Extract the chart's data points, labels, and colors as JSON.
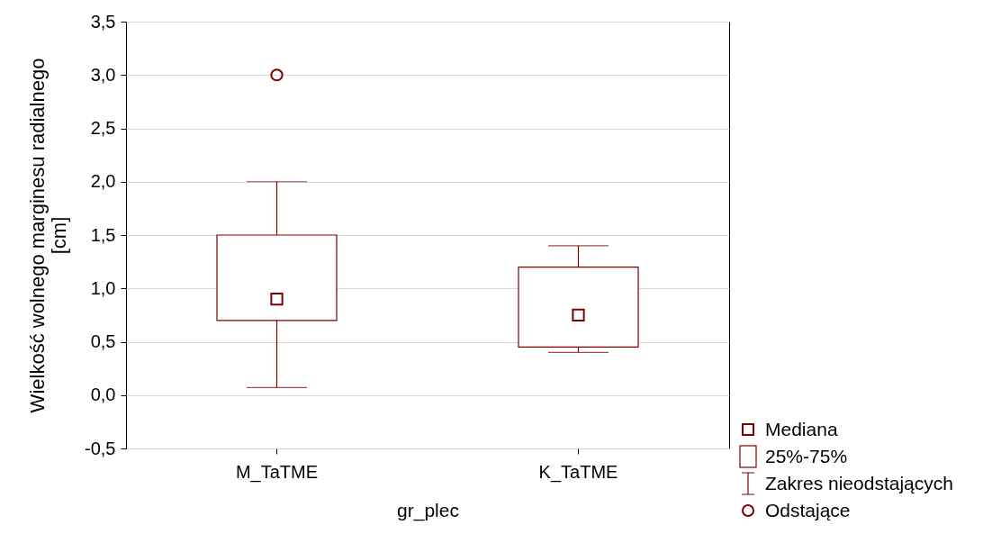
{
  "chart_data": {
    "type": "box",
    "xlabel": "gr_plec",
    "ylabel": "Wielkość wolnego marginesu radialnego\n[cm]",
    "categories": [
      "M_TaTME",
      "K_TaTME"
    ],
    "series": [
      {
        "color": "#800000",
        "boxes": [
          {
            "low": 0.07,
            "q1": 0.7,
            "median": 0.9,
            "q3": 1.5,
            "high": 2.0,
            "outliers": [
              3.0
            ]
          },
          {
            "low": 0.4,
            "q1": 0.45,
            "median": 0.75,
            "q3": 1.2,
            "high": 1.4
          }
        ]
      }
    ],
    "ylim": [
      -0.5,
      3.5
    ],
    "yticks": [
      {
        "value": -0.5,
        "label": "-0,5"
      },
      {
        "value": 0,
        "label": "0,0"
      },
      {
        "value": 0.5,
        "label": "0,5"
      },
      {
        "value": 1,
        "label": "1,0"
      },
      {
        "value": 1.5,
        "label": "1,5"
      },
      {
        "value": 2,
        "label": "2,0"
      },
      {
        "value": 2.5,
        "label": "2,5"
      },
      {
        "value": 3,
        "label": "3,0"
      },
      {
        "value": 3.5,
        "label": "3,5"
      }
    ],
    "grid": "y",
    "marker": "square",
    "annotations": [
      "Mediana",
      "25%-75%",
      "Zakres nieodstających",
      "Odstające"
    ]
  }
}
